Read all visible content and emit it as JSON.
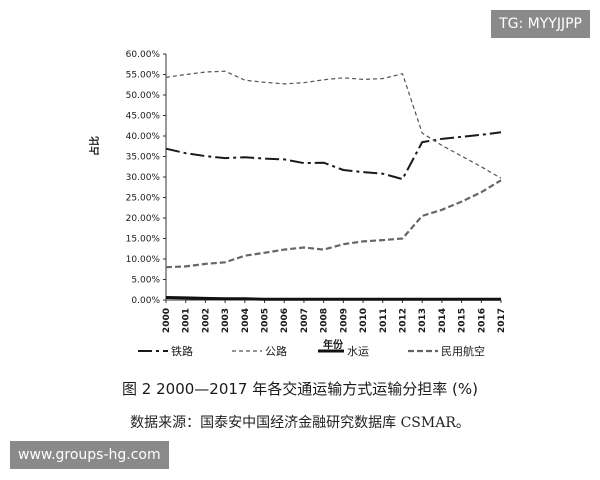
{
  "watermarks": {
    "top_right": "TG: MYYJJPP",
    "bottom_left": "www.groups-hg.com"
  },
  "caption": {
    "figure": "图 2    2000—2017 年各交通运输方式运输分担率 (%)",
    "source": "数据来源：国泰安中国经济金融研究数据库 CSMAR。"
  },
  "chart_data": {
    "type": "line",
    "title": "",
    "xlabel": "年份",
    "ylabel": "占比",
    "ylim": [
      0,
      60
    ],
    "yticks": [
      0,
      5,
      10,
      15,
      20,
      25,
      30,
      35,
      40,
      45,
      50,
      55,
      60
    ],
    "ytick_labels": [
      "0.00%",
      "5.00%",
      "10.00%",
      "15.00%",
      "20.00%",
      "25.00%",
      "30.00%",
      "35.00%",
      "40.00%",
      "45.00%",
      "50.00%",
      "55.00%",
      "60.00%"
    ],
    "x": [
      "2000",
      "2001",
      "2002",
      "2003",
      "2004",
      "2005",
      "2006",
      "2007",
      "2008",
      "2009",
      "2010",
      "2011",
      "2012",
      "2013",
      "2014",
      "2015",
      "2016",
      "2017"
    ],
    "grid": false,
    "legend_position": "bottom",
    "series": [
      {
        "name": "铁路",
        "style": "dashdot",
        "color": "#1a1a1a",
        "values": [
          36.9,
          35.8,
          35.1,
          34.6,
          34.8,
          34.5,
          34.3,
          33.4,
          33.5,
          31.7,
          31.2,
          30.8,
          29.5,
          38.5,
          39.3,
          39.8,
          40.3,
          40.9
        ]
      },
      {
        "name": "公路",
        "style": "dashed",
        "color": "#555555",
        "values": [
          54.3,
          55.0,
          55.6,
          55.8,
          53.6,
          53.1,
          52.7,
          53.0,
          53.7,
          54.2,
          53.8,
          54.0,
          55.2,
          40.7,
          37.7,
          35.1,
          32.5,
          29.7
        ]
      },
      {
        "name": "水运",
        "style": "solid",
        "color": "#111111",
        "values": [
          0.6,
          0.5,
          0.4,
          0.3,
          0.3,
          0.2,
          0.2,
          0.2,
          0.2,
          0.2,
          0.2,
          0.2,
          0.2,
          0.2,
          0.2,
          0.2,
          0.2,
          0.2
        ]
      },
      {
        "name": "民用航空",
        "style": "longdash",
        "color": "#666666",
        "values": [
          8.0,
          8.2,
          8.8,
          9.2,
          10.8,
          11.5,
          12.3,
          12.8,
          12.3,
          13.6,
          14.3,
          14.6,
          15.0,
          20.5,
          22.0,
          24.0,
          26.3,
          29.2
        ]
      }
    ]
  }
}
